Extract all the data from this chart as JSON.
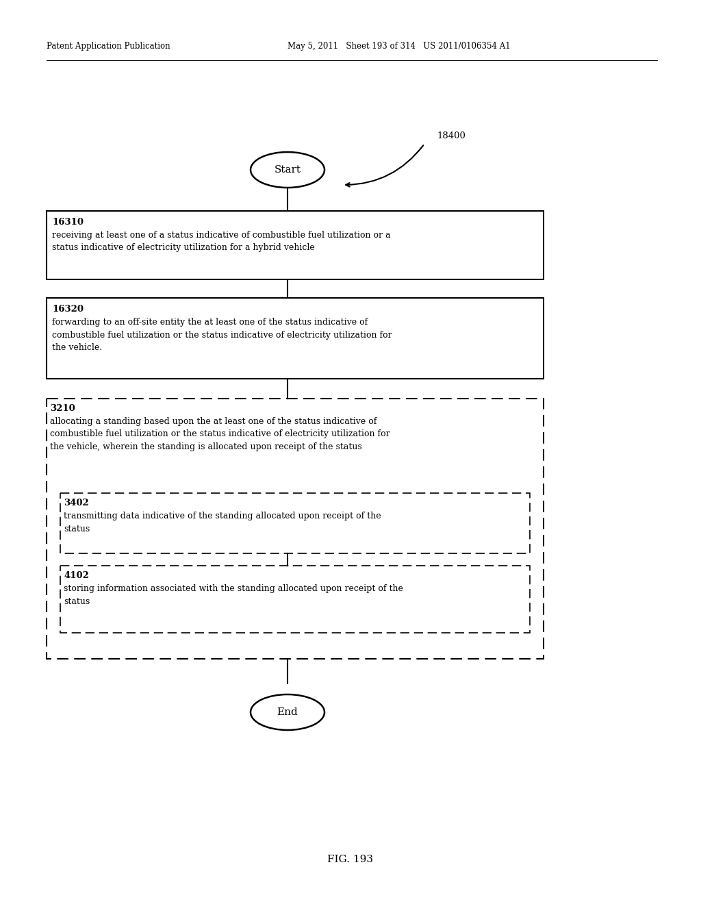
{
  "header_left": "Patent Application Publication",
  "header_middle": "May 5, 2011   Sheet 193 of 314   US 2011/0106354 A1",
  "fig_label": "FIG. 193",
  "diagram_label": "18400",
  "start_label": "Start",
  "end_label": "End",
  "box1_id": "16310",
  "box1_text": "receiving at least one of a status indicative of combustible fuel utilization or a\nstatus indicative of electricity utilization for a hybrid vehicle",
  "box2_id": "16320",
  "box2_text": "forwarding to an off-site entity the at least one of the status indicative of\ncombustible fuel utilization or the status indicative of electricity utilization for\nthe vehicle.",
  "outer_dashed_id": "3210",
  "outer_dashed_text": "allocating a standing based upon the at least one of the status indicative of\ncombustible fuel utilization or the status indicative of electricity utilization for\nthe vehicle, wherein the standing is allocated upon receipt of the status",
  "inner_dashed1_id": "3402",
  "inner_dashed1_text": "transmitting data indicative of the standing allocated upon receipt of the\nstatus",
  "inner_dashed2_id": "4102",
  "inner_dashed2_text": "storing information associated with the standing allocated upon receipt of the\nstatus",
  "bg_color": "#ffffff",
  "text_color": "#000000"
}
